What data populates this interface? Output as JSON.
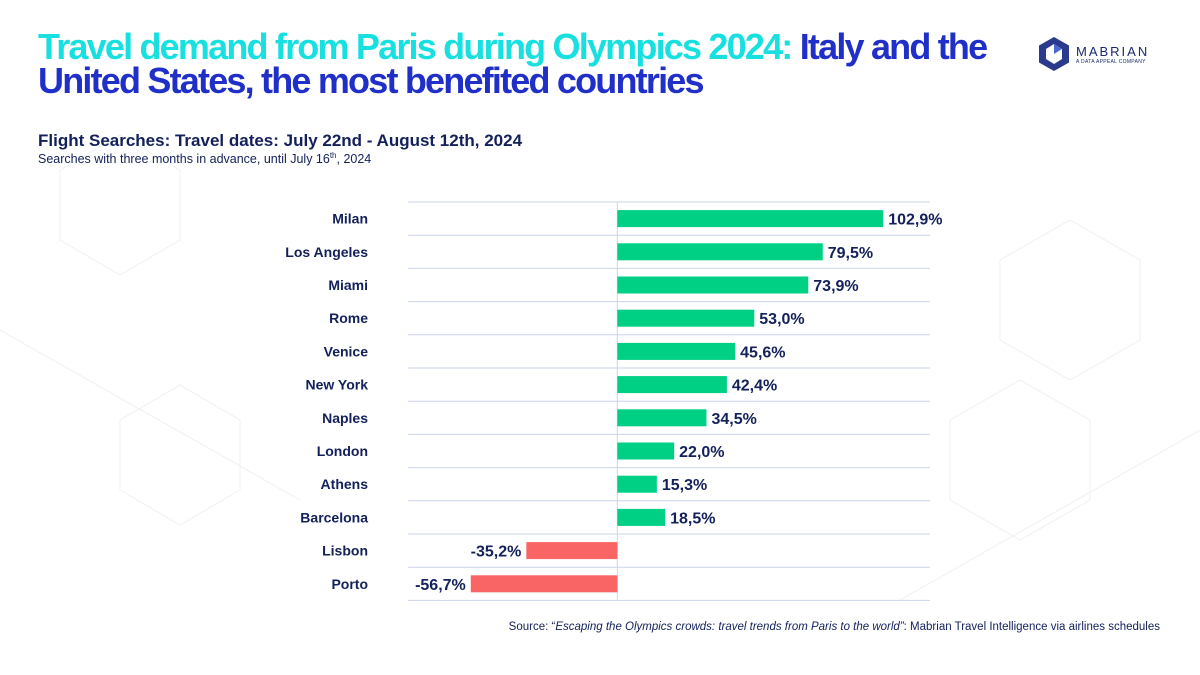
{
  "header": {
    "title_part1": "Travel demand from Paris during Olympics 2024:",
    "title_part2": "Italy and the United States, the most benefited countries",
    "logo_name": "MABRIAN",
    "logo_tagline": "A DATA APPEAL COMPANY"
  },
  "subtitle": "Flight Searches: Travel dates: July 22nd -  August 12th, 2024",
  "note_pre": "Searches with three months in advance, until July 16",
  "note_sup": "th",
  "note_post": ", 2024",
  "source": {
    "prefix": "Source: “",
    "italic": "Escaping the Olympics crowds: travel trends from Paris to the world”",
    "suffix": ":  Mabrian Travel Intelligence via airlines schedules"
  },
  "colors": {
    "positive": "#00d084",
    "negative": "#f96464",
    "title_accent": "#18e0e0",
    "title_main": "#1f2fc8",
    "text": "#13205a"
  },
  "chart_data": {
    "type": "bar",
    "orientation": "horizontal",
    "categories": [
      "Milan",
      "Los Angeles",
      "Miami",
      "Rome",
      "Venice",
      "New York",
      "Naples",
      "London",
      "Athens",
      "Barcelona",
      "Lisbon",
      "Porto"
    ],
    "values": [
      102.9,
      79.5,
      73.9,
      53.0,
      45.6,
      42.4,
      34.5,
      22.0,
      15.3,
      18.5,
      -35.2,
      -56.7
    ],
    "labels": [
      "102,9%",
      "79,5%",
      "73,9%",
      "53,0%",
      "45,6%",
      "42,4%",
      "34,5%",
      "22,0%",
      "15,3%",
      "18,5%",
      "-35,2%",
      "-56,7%"
    ],
    "unit": "%",
    "grid": true
  }
}
